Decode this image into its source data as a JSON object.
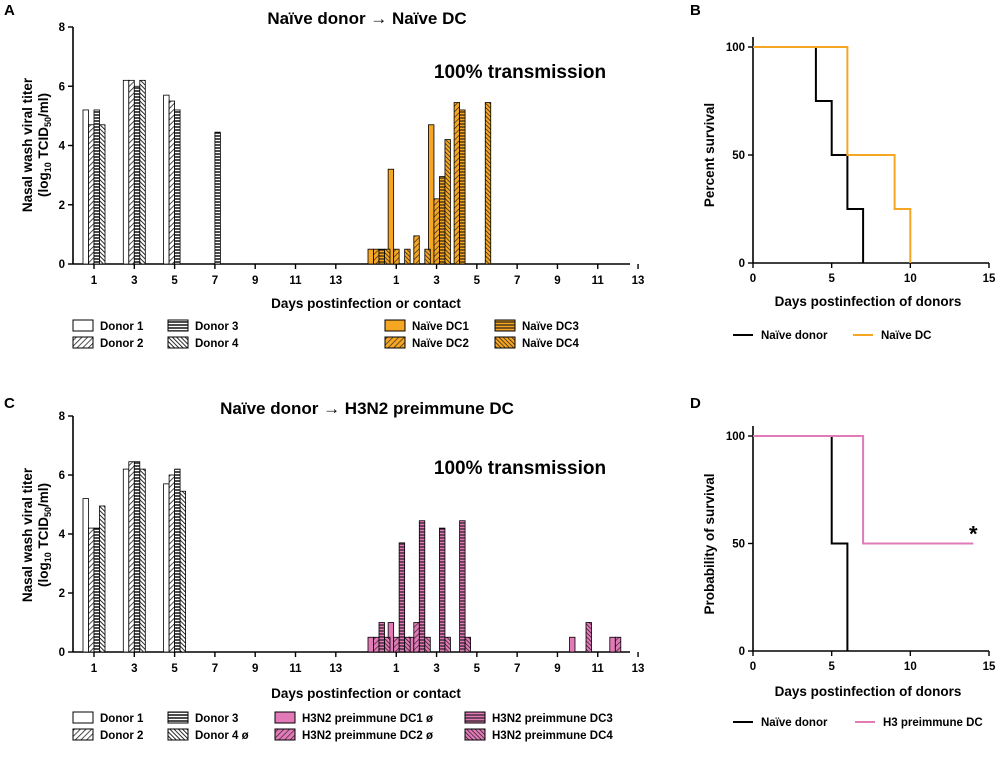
{
  "chart_data": [
    {
      "panel": "A",
      "type": "bar",
      "title": "Naïve donor → Naïve DC",
      "annotation": "100% transmission",
      "xlabel": "Days postinfection or contact",
      "ylabel_line1": "Nasal wash viral titer",
      "ylabel_line2": "(log10 TCID50/ml)",
      "ylim": [
        0,
        8
      ],
      "yticks": [
        "0",
        "2",
        "4",
        "6",
        "8"
      ],
      "xticks": [
        "1",
        "3",
        "5",
        "7",
        "9",
        "11",
        "13",
        "1",
        "3",
        "5",
        "7",
        "9",
        "11",
        "13"
      ],
      "days": [
        1,
        2,
        3,
        4,
        5,
        6,
        7,
        8,
        9,
        10,
        11,
        12,
        13,
        14
      ],
      "donor_series": [
        {
          "name": "Donor 1",
          "pattern": "open",
          "values": [
            5.2,
            null,
            6.2,
            null,
            5.7,
            null,
            null,
            null,
            null,
            null,
            null,
            null,
            null,
            null
          ]
        },
        {
          "name": "Donor 2",
          "pattern": "diag",
          "values": [
            4.7,
            null,
            6.2,
            null,
            5.5,
            null,
            null,
            null,
            null,
            null,
            null,
            null,
            null,
            null
          ]
        },
        {
          "name": "Donor 3",
          "pattern": "horiz",
          "values": [
            5.2,
            null,
            6.0,
            null,
            5.2,
            null,
            4.45,
            null,
            null,
            null,
            null,
            null,
            null,
            null
          ]
        },
        {
          "name": "Donor 4",
          "pattern": "diag-dense",
          "values": [
            4.7,
            null,
            6.2,
            null,
            null,
            null,
            null,
            null,
            null,
            null,
            null,
            null,
            null,
            null
          ]
        }
      ],
      "contact_series": [
        {
          "name": "Naïve DC1",
          "pattern": "solid",
          "values": [
            0.5,
            3.2,
            null,
            4.7,
            null,
            null,
            null,
            null,
            null,
            null,
            null,
            null,
            null,
            null
          ]
        },
        {
          "name": "Naïve DC2",
          "pattern": "diag",
          "values": [
            0.5,
            0.5,
            0.95,
            2.2,
            5.45,
            null,
            null,
            null,
            null,
            null,
            null,
            null,
            null,
            null
          ]
        },
        {
          "name": "Naïve DC3",
          "pattern": "horiz",
          "values": [
            0.5,
            null,
            null,
            2.95,
            5.2,
            null,
            null,
            null,
            null,
            null,
            null,
            null,
            null,
            null
          ]
        },
        {
          "name": "Naïve DC4",
          "pattern": "diag-dense",
          "values": [
            0.5,
            0.5,
            0.5,
            4.2,
            null,
            5.45,
            null,
            null,
            null,
            null,
            null,
            null,
            null,
            null
          ]
        }
      ],
      "legend_donor": [
        "Donor 1",
        "Donor 3",
        "Donor 2",
        "Donor 4"
      ],
      "legend_contact": [
        "Naïve DC1",
        "Naïve DC3",
        "Naïve DC2",
        "Naïve DC4"
      ],
      "contact_color": "#f5a623"
    },
    {
      "panel": "B",
      "type": "line",
      "subtype": "survival-step",
      "xlabel": "Days postinfection of donors",
      "ylabel": "Percent survival",
      "xlim": [
        0,
        15
      ],
      "ylim": [
        0,
        100
      ],
      "xticks": [
        "0",
        "5",
        "10",
        "15"
      ],
      "yticks": [
        "0",
        "50",
        "100"
      ],
      "series": [
        {
          "name": "Naïve donor",
          "color": "#000000",
          "steps": [
            [
              0,
              100
            ],
            [
              4,
              100
            ],
            [
              4,
              75
            ],
            [
              5,
              75
            ],
            [
              5,
              50
            ],
            [
              6,
              50
            ],
            [
              6,
              25
            ],
            [
              7,
              25
            ],
            [
              7,
              0
            ]
          ]
        },
        {
          "name": "Naïve DC",
          "color": "#f5a623",
          "steps": [
            [
              0,
              100
            ],
            [
              6,
              100
            ],
            [
              6,
              50
            ],
            [
              9,
              50
            ],
            [
              9,
              25
            ],
            [
              10,
              25
            ],
            [
              10,
              0
            ]
          ]
        }
      ],
      "marker": ""
    },
    {
      "panel": "C",
      "type": "bar",
      "title": "Naïve donor → H3N2 preimmune DC",
      "annotation": "100% transmission",
      "xlabel": "Days postinfection or contact",
      "ylabel_line1": "Nasal wash viral titer",
      "ylabel_line2": "(log10 TCID50/ml)",
      "ylim": [
        0,
        8
      ],
      "yticks": [
        "0",
        "2",
        "4",
        "6",
        "8"
      ],
      "xticks": [
        "1",
        "3",
        "5",
        "7",
        "9",
        "11",
        "13",
        "1",
        "3",
        "5",
        "7",
        "9",
        "11",
        "13"
      ],
      "days": [
        1,
        2,
        3,
        4,
        5,
        6,
        7,
        8,
        9,
        10,
        11,
        12,
        13,
        14
      ],
      "donor_series": [
        {
          "name": "Donor 1",
          "pattern": "open",
          "values": [
            5.2,
            null,
            6.2,
            null,
            5.7,
            null,
            null,
            null,
            null,
            null,
            null,
            null,
            null,
            null
          ]
        },
        {
          "name": "Donor 2",
          "pattern": "diag",
          "values": [
            4.2,
            null,
            6.45,
            null,
            6.0,
            null,
            null,
            null,
            null,
            null,
            null,
            null,
            null,
            null
          ]
        },
        {
          "name": "Donor 3",
          "pattern": "horiz",
          "values": [
            4.2,
            null,
            6.45,
            null,
            6.2,
            null,
            null,
            null,
            null,
            null,
            null,
            null,
            null,
            null
          ]
        },
        {
          "name": "Donor 4",
          "pattern": "diag-dense",
          "values": [
            4.95,
            null,
            6.2,
            null,
            5.45,
            null,
            null,
            null,
            null,
            null,
            null,
            null,
            null,
            null
          ]
        }
      ],
      "contact_series": [
        {
          "name": "H3N2 preimmune DC1",
          "pattern": "solid",
          "values": [
            0.5,
            1.0,
            0.5,
            null,
            null,
            null,
            null,
            null,
            null,
            null,
            0.5,
            null,
            0.5,
            null
          ]
        },
        {
          "name": "H3N2 preimmune DC2",
          "pattern": "diag",
          "values": [
            0.5,
            0.5,
            1.0,
            null,
            null,
            null,
            null,
            null,
            null,
            null,
            null,
            null,
            0.5,
            null
          ]
        },
        {
          "name": "H3N2 preimmune DC3",
          "pattern": "horiz",
          "values": [
            1.0,
            3.7,
            4.45,
            4.2,
            4.45,
            null,
            null,
            null,
            null,
            null,
            null,
            null,
            null,
            null
          ]
        },
        {
          "name": "H3N2 preimmune DC4",
          "pattern": "diag-dense",
          "values": [
            0.5,
            0.5,
            0.5,
            0.5,
            0.5,
            null,
            null,
            null,
            null,
            null,
            1.0,
            null,
            null,
            null
          ]
        }
      ],
      "legend_donor": [
        "Donor 1",
        "Donor 3",
        "Donor 2",
        "Donor 4 ø"
      ],
      "legend_contact": [
        "H3N2 preimmune DC1 ø",
        "H3N2 preimmune DC3",
        "H3N2 preimmune DC2 ø",
        "H3N2 preimmune DC4"
      ],
      "contact_color": "#e27ab8"
    },
    {
      "panel": "D",
      "type": "line",
      "subtype": "survival-step",
      "xlabel": "Days postinfection of donors",
      "ylabel": "Probability of survival",
      "xlim": [
        0,
        15
      ],
      "ylim": [
        0,
        100
      ],
      "xticks": [
        "0",
        "5",
        "10",
        "15"
      ],
      "yticks": [
        "0",
        "50",
        "100"
      ],
      "series": [
        {
          "name": "Naïve donor",
          "color": "#000000",
          "steps": [
            [
              0,
              100
            ],
            [
              5,
              100
            ],
            [
              5,
              50
            ],
            [
              6,
              50
            ],
            [
              6,
              0
            ]
          ]
        },
        {
          "name": "H3 preimmune DC",
          "color": "#e27ab8",
          "steps": [
            [
              0,
              100
            ],
            [
              7,
              100
            ],
            [
              7,
              50
            ],
            [
              14,
              50
            ]
          ]
        }
      ],
      "marker": "*"
    }
  ]
}
